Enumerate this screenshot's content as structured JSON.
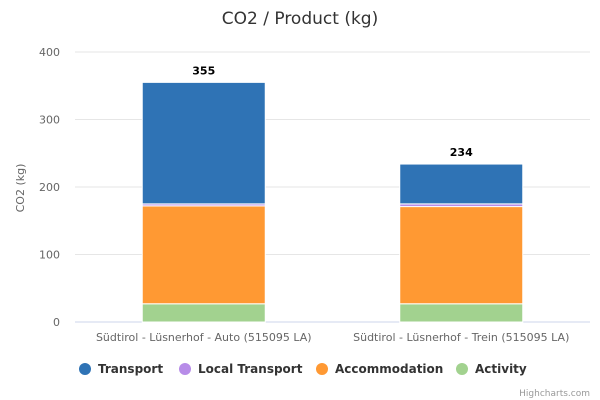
{
  "chart_data": {
    "type": "bar",
    "stacked": true,
    "title": "CO2 / Product (kg)",
    "xlabel": "",
    "ylabel": "CO2 (kg)",
    "ylim": [
      0,
      400
    ],
    "yticks": [
      0,
      100,
      200,
      300,
      400
    ],
    "categories": [
      "Südtirol - Lüsnerhof - Auto (515095 LA)",
      "Südtirol - Lüsnerhof - Trein (515095 LA)"
    ],
    "totals": [
      "355",
      "234"
    ],
    "series": [
      {
        "name": "Activity",
        "color": "#a2d28f",
        "values": [
          27,
          27
        ]
      },
      {
        "name": "Accommodation",
        "color": "#ff9933",
        "values": [
          145,
          144
        ]
      },
      {
        "name": "Local Transport",
        "color": "#b78ce8",
        "values": [
          3,
          4
        ]
      },
      {
        "name": "Transport",
        "color": "#2f73b5",
        "values": [
          180,
          59
        ]
      }
    ],
    "legend": {
      "placement": "bottom",
      "order": [
        "Transport",
        "Local Transport",
        "Accommodation",
        "Activity"
      ]
    },
    "grid": true
  },
  "credits": "Highcharts.com"
}
